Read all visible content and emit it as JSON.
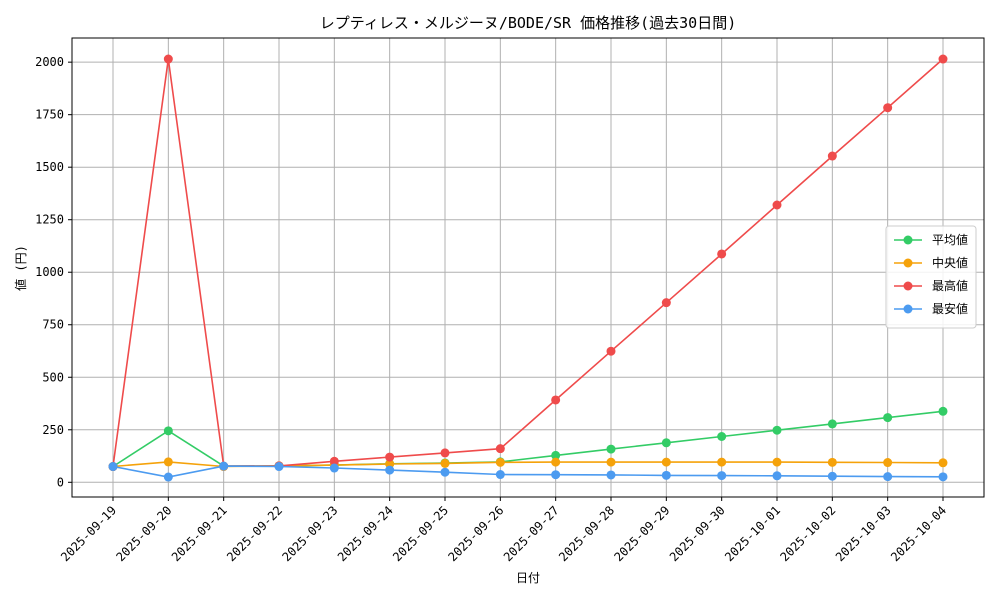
{
  "chart_data": {
    "type": "line",
    "title": "レプティレス・メルジーヌ/BODE/SR 価格推移(過去30日間)",
    "xlabel": "日付",
    "ylabel": "値 (円)",
    "ylim": [
      -70,
      2115
    ],
    "yticks": [
      0,
      250,
      500,
      750,
      1000,
      1250,
      1500,
      1750,
      2000
    ],
    "grid": true,
    "legend_position": "center-right",
    "categories": [
      "2025-09-19",
      "2025-09-20",
      "2025-09-21",
      "2025-09-22",
      "2025-09-23",
      "2025-09-24",
      "2025-09-25",
      "2025-09-26",
      "2025-09-27",
      "2025-09-28",
      "2025-09-29",
      "2025-09-30",
      "2025-10-01",
      "2025-10-02",
      "2025-10-03",
      "2025-10-04"
    ],
    "series": [
      {
        "name": "平均値",
        "color": "#33cc66",
        "values": [
          75,
          245,
          77,
          78,
          82,
          88,
          92,
          97,
          128,
          158,
          188,
          218,
          248,
          278,
          308,
          338
        ]
      },
      {
        "name": "中央値",
        "color": "#f5a20a",
        "values": [
          75,
          97,
          75,
          78,
          82,
          87,
          90,
          95,
          96,
          96,
          96,
          96,
          96,
          95,
          94,
          93
        ]
      },
      {
        "name": "最高値",
        "color": "#ef4b4b",
        "values": [
          75,
          2015,
          77,
          78,
          100,
          120,
          140,
          160,
          392,
          624,
          855,
          1087,
          1320,
          1553,
          1783,
          2015
        ]
      },
      {
        "name": "最安値",
        "color": "#4c9bf0",
        "values": [
          75,
          25,
          77,
          75,
          68,
          58,
          48,
          37,
          36,
          35,
          33,
          32,
          31,
          29,
          27,
          26
        ]
      }
    ]
  }
}
